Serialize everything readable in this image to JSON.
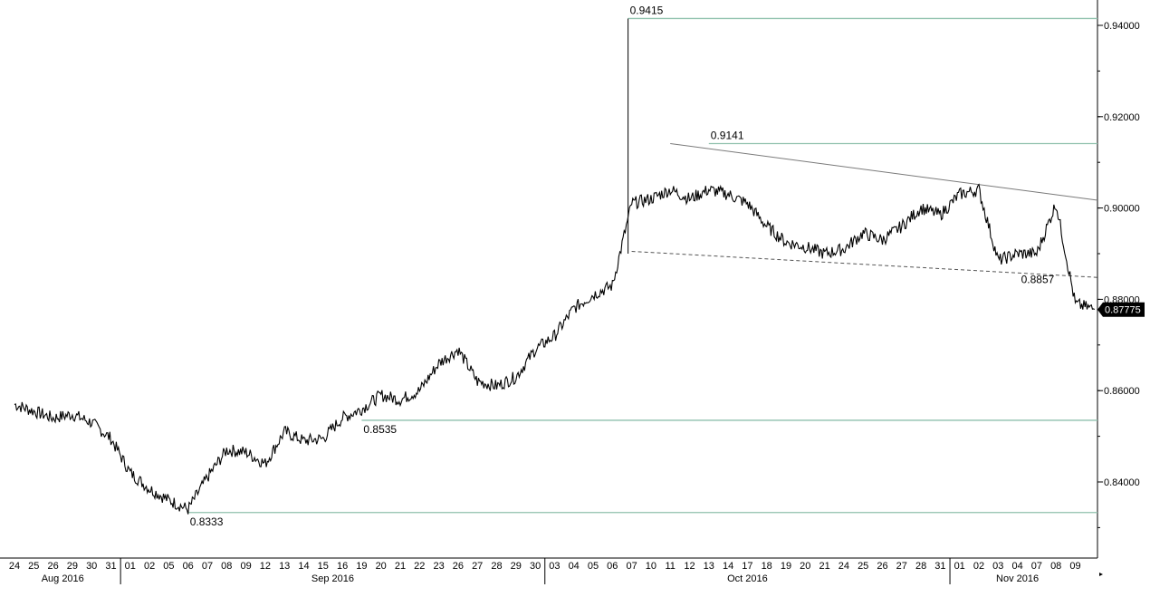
{
  "chart_data": {
    "type": "line",
    "title": "",
    "xlabel": "",
    "ylabel": "",
    "ylim": [
      0.822,
      0.943
    ],
    "grid": false,
    "legend": "none",
    "colors": {
      "price": "#000000",
      "level_line": "#8fc1ad",
      "trend_line": "#7a7a7a",
      "last_badge": "#000000"
    },
    "y_ticks": [
      "0.94000",
      "0.92000",
      "0.90000",
      "0.88000",
      "0.86000",
      "0.84000"
    ],
    "x_days": [
      "24",
      "25",
      "26",
      "29",
      "30",
      "31",
      "01",
      "02",
      "05",
      "06",
      "07",
      "08",
      "09",
      "12",
      "13",
      "14",
      "15",
      "16",
      "19",
      "20",
      "21",
      "22",
      "23",
      "26",
      "27",
      "28",
      "29",
      "30",
      "03",
      "04",
      "05",
      "06",
      "07",
      "10",
      "11",
      "12",
      "13",
      "14",
      "17",
      "18",
      "19",
      "20",
      "21",
      "24",
      "25",
      "26",
      "27",
      "28",
      "31",
      "01",
      "02",
      "03",
      "04",
      "07",
      "08",
      "09"
    ],
    "months": [
      {
        "label": "Aug 2016",
        "start": 0,
        "end": 5
      },
      {
        "label": "Sep 2016",
        "start": 6,
        "end": 27
      },
      {
        "label": "Oct 2016",
        "start": 28,
        "end": 48
      },
      {
        "label": "Nov 2016",
        "start": 49,
        "end": 55
      }
    ],
    "series": [
      {
        "x": [
          "24 Aug",
          "25 Aug",
          "26 Aug",
          "29 Aug",
          "30 Aug",
          "31 Aug",
          "01 Sep",
          "02 Sep",
          "05 Sep",
          "06 Sep",
          "07 Sep",
          "08 Sep",
          "09 Sep",
          "12 Sep",
          "13 Sep",
          "14 Sep",
          "15 Sep",
          "16 Sep",
          "19 Sep",
          "20 Sep",
          "21 Sep",
          "22 Sep",
          "23 Sep",
          "26 Sep",
          "27 Sep",
          "28 Sep",
          "29 Sep",
          "30 Sep",
          "03 Oct",
          "04 Oct",
          "05 Oct",
          "06 Oct",
          "07 Oct",
          "10 Oct",
          "11 Oct",
          "12 Oct",
          "13 Oct",
          "14 Oct",
          "17 Oct",
          "18 Oct",
          "19 Oct",
          "20 Oct",
          "21 Oct",
          "24 Oct",
          "25 Oct",
          "26 Oct",
          "27 Oct",
          "28 Oct",
          "31 Oct",
          "01 Nov",
          "02 Nov",
          "03 Nov",
          "04 Nov",
          "07 Nov",
          "08 Nov",
          "09 Nov",
          "10 Nov"
        ],
        "values": [
          0.857,
          0.8555,
          0.854,
          0.8548,
          0.853,
          0.8495,
          0.842,
          0.8385,
          0.836,
          0.834,
          0.841,
          0.847,
          0.8465,
          0.844,
          0.851,
          0.849,
          0.8495,
          0.854,
          0.856,
          0.859,
          0.858,
          0.86,
          0.866,
          0.869,
          0.862,
          0.861,
          0.863,
          0.869,
          0.872,
          0.878,
          0.881,
          0.883,
          0.901,
          0.902,
          0.904,
          0.902,
          0.904,
          0.903,
          0.901,
          0.896,
          0.8925,
          0.8915,
          0.89,
          0.891,
          0.8945,
          0.893,
          0.896,
          0.9,
          0.8985,
          0.903,
          0.904,
          0.8885,
          0.89,
          0.89,
          0.901,
          0.879,
          0.8778
        ]
      }
    ],
    "horizontal_levels": [
      {
        "label": "0.9415",
        "value": 0.9415
      },
      {
        "label": "0.9141",
        "value": 0.9141
      },
      {
        "label": "0.8535",
        "value": 0.8535
      },
      {
        "label": "0.8333",
        "value": 0.8333
      }
    ],
    "trendlines": [
      {
        "style": "solid",
        "from": {
          "x": "11 Oct",
          "y": 0.9141
        },
        "to": {
          "x": "10 Nov",
          "y": 0.9017
        }
      },
      {
        "style": "dashed",
        "from": {
          "x": "07 Oct",
          "y": 0.8905
        },
        "to": {
          "x": "10 Nov",
          "y": 0.8848
        }
      }
    ],
    "annotations": [
      {
        "text": "0.8857",
        "x": "04 Nov",
        "y": 0.8857
      }
    ],
    "last_value": "0.87775"
  }
}
